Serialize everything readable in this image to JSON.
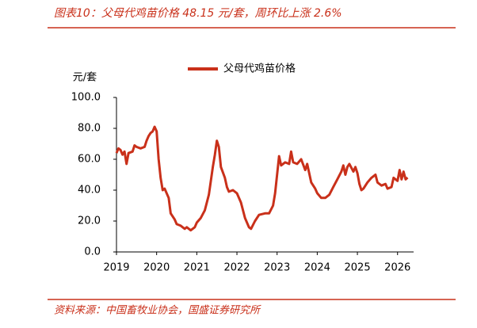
{
  "header": {
    "title": "图表10：父母代鸡苗价格 48.15 元/套，周环比上涨 2.6%"
  },
  "footer": {
    "source": "资料来源：中国畜牧业协会，国盛证券研究所"
  },
  "chart_data": {
    "type": "line",
    "y_label": "元/套",
    "x": [
      2019.0,
      2019.05,
      2019.1,
      2019.15,
      2019.2,
      2019.25,
      2019.3,
      2019.4,
      2019.45,
      2019.5,
      2019.6,
      2019.7,
      2019.75,
      2019.8,
      2019.85,
      2019.9,
      2019.95,
      2020.0,
      2020.05,
      2020.1,
      2020.15,
      2020.2,
      2020.3,
      2020.35,
      2020.45,
      2020.5,
      2020.6,
      2020.7,
      2020.75,
      2020.85,
      2020.95,
      2021.0,
      2021.1,
      2021.2,
      2021.3,
      2021.4,
      2021.45,
      2021.5,
      2021.55,
      2021.6,
      2021.7,
      2021.75,
      2021.8,
      2021.9,
      2022.0,
      2022.1,
      2022.2,
      2022.3,
      2022.35,
      2022.45,
      2022.55,
      2022.7,
      2022.8,
      2022.9,
      2022.95,
      2023.0,
      2023.05,
      2023.1,
      2023.2,
      2023.3,
      2023.35,
      2023.4,
      2023.5,
      2023.6,
      2023.7,
      2023.75,
      2023.85,
      2023.95,
      2024.0,
      2024.1,
      2024.2,
      2024.3,
      2024.4,
      2024.5,
      2024.6,
      2024.65,
      2024.7,
      2024.75,
      2024.8,
      2024.9,
      2024.95,
      2025.0,
      2025.05,
      2025.1,
      2025.15,
      2025.25,
      2025.35,
      2025.45,
      2025.5,
      2025.6,
      2025.7,
      2025.75,
      2025.85,
      2025.9,
      2026.0,
      2026.05,
      2026.1,
      2026.15,
      2026.2,
      2026.25
    ],
    "series": [
      {
        "name": "父母代鸡苗价格",
        "color": "#c9301a",
        "values": [
          64,
          67,
          66,
          63,
          65,
          57,
          64,
          65,
          69,
          68,
          67,
          68,
          72,
          75,
          77,
          78,
          81,
          78,
          60,
          48,
          40,
          41,
          35,
          25,
          21,
          18,
          17,
          15,
          16,
          14,
          16,
          19,
          22,
          27,
          37,
          55,
          63,
          72,
          68,
          55,
          48,
          42,
          39,
          40,
          38,
          32,
          22,
          16,
          15,
          20,
          24,
          25,
          25,
          30,
          38,
          50,
          62,
          56,
          58,
          57,
          65,
          58,
          57,
          60,
          53,
          57,
          45,
          41,
          38,
          35,
          35,
          37,
          42,
          47,
          52,
          56,
          50,
          55,
          57,
          52,
          55,
          51,
          44,
          40,
          41,
          45,
          48,
          50,
          45,
          43,
          44,
          41,
          42,
          48,
          46,
          53,
          47,
          52,
          47,
          48.15
        ]
      }
    ],
    "xlim": [
      2019,
      2026.4
    ],
    "xticks": [
      2019,
      2020,
      2021,
      2022,
      2023,
      2024,
      2025,
      2026
    ],
    "ylim": [
      0,
      100
    ],
    "yticks": [
      {
        "value": 0,
        "label": "0.0"
      },
      {
        "value": 20,
        "label": "20.0"
      },
      {
        "value": 40,
        "label": "40.0"
      },
      {
        "value": 60,
        "label": "60.0"
      },
      {
        "value": 80,
        "label": "80.0"
      },
      {
        "value": 100,
        "label": "100.0"
      }
    ],
    "grid": false
  }
}
